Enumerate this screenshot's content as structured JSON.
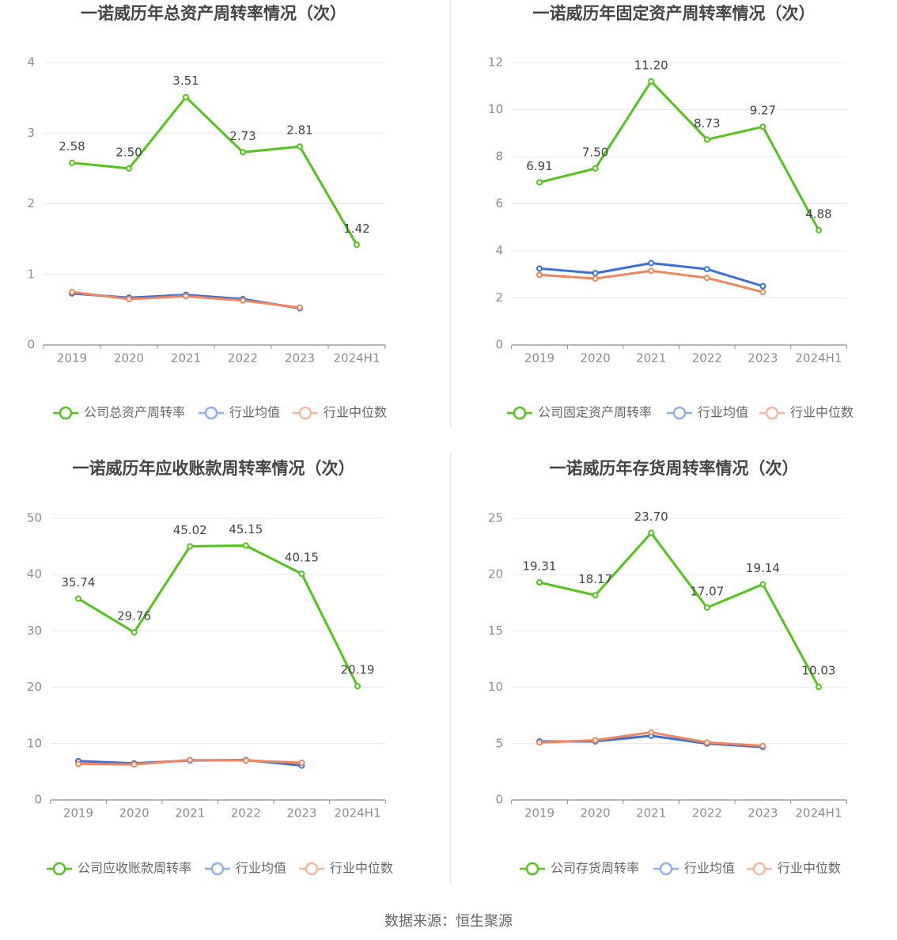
{
  "colors": {
    "company": "#52c41a",
    "industry_avg": "#3a6fd8",
    "industry_median": "#f0865c",
    "legend_avg": "#8fb0ee",
    "legend_median": "#f6b79c",
    "grid": "#e6e8f0",
    "axis": "#8c8c8c",
    "tick_text": "#8c8c8c",
    "label_text": "#444444",
    "title_text": "#444444"
  },
  "source": "数据来源：恒生聚源",
  "chart_data": [
    {
      "type": "line",
      "title": "一诺威历年总资产周转率情况（次）",
      "categories": [
        "2019",
        "2020",
        "2021",
        "2022",
        "2023",
        "2024H1"
      ],
      "ylim": [
        0,
        4
      ],
      "yticks": [
        0,
        1,
        2,
        3,
        4
      ],
      "ytick_labels": [
        "0",
        "1",
        "2",
        "3",
        "4"
      ],
      "grid": true,
      "legend_position": "bottom",
      "series": [
        {
          "name": "公司总资产周转率",
          "role": "company",
          "values": [
            2.58,
            2.5,
            3.51,
            2.73,
            2.81,
            1.42
          ],
          "labels": [
            "2.58",
            "2.50",
            "3.51",
            "2.73",
            "2.81",
            "1.42"
          ]
        },
        {
          "name": "行业均值",
          "role": "industry_avg",
          "values": [
            0.73,
            0.67,
            0.71,
            0.65,
            0.52,
            null
          ]
        },
        {
          "name": "行业中位数",
          "role": "industry_median",
          "values": [
            0.75,
            0.65,
            0.69,
            0.63,
            0.53,
            null
          ]
        }
      ]
    },
    {
      "type": "line",
      "title": "一诺威历年固定资产周转率情况（次）",
      "categories": [
        "2019",
        "2020",
        "2021",
        "2022",
        "2023",
        "2024H1"
      ],
      "ylim": [
        0,
        12
      ],
      "yticks": [
        0,
        2,
        4,
        6,
        8,
        10,
        12
      ],
      "ytick_labels": [
        "0",
        "2",
        "4",
        "6",
        "8",
        "10",
        "12"
      ],
      "grid": true,
      "legend_position": "bottom",
      "series": [
        {
          "name": "公司固定资产周转率",
          "role": "company",
          "values": [
            6.91,
            7.5,
            11.2,
            8.73,
            9.27,
            4.88
          ],
          "labels": [
            "6.91",
            "7.50",
            "11.20",
            "8.73",
            "9.27",
            "4.88"
          ]
        },
        {
          "name": "行业均值",
          "role": "industry_avg",
          "values": [
            3.25,
            3.05,
            3.48,
            3.22,
            2.5,
            null
          ]
        },
        {
          "name": "行业中位数",
          "role": "industry_median",
          "values": [
            2.98,
            2.82,
            3.15,
            2.85,
            2.25,
            null
          ]
        }
      ]
    },
    {
      "type": "line",
      "title": "一诺威历年应收账款周转率情况（次）",
      "categories": [
        "2019",
        "2020",
        "2021",
        "2022",
        "2023",
        "2024H1"
      ],
      "ylim": [
        0,
        50
      ],
      "yticks": [
        0,
        10,
        20,
        30,
        40,
        50
      ],
      "ytick_labels": [
        "0",
        "10",
        "20",
        "30",
        "40",
        "50"
      ],
      "grid": true,
      "legend_position": "bottom",
      "series": [
        {
          "name": "公司应收账款周转率",
          "role": "company",
          "values": [
            35.74,
            29.76,
            45.02,
            45.15,
            40.15,
            20.19
          ],
          "labels": [
            "35.74",
            "29.76",
            "45.02",
            "45.15",
            "40.15",
            "20.19"
          ]
        },
        {
          "name": "行业均值",
          "role": "industry_avg",
          "values": [
            6.9,
            6.5,
            7.0,
            7.1,
            6.1,
            null
          ]
        },
        {
          "name": "行业中位数",
          "role": "industry_median",
          "values": [
            6.4,
            6.3,
            7.1,
            7.0,
            6.6,
            null
          ]
        }
      ]
    },
    {
      "type": "line",
      "title": "一诺威历年存货周转率情况（次）",
      "categories": [
        "2019",
        "2020",
        "2021",
        "2022",
        "2023",
        "2024H1"
      ],
      "ylim": [
        0,
        25
      ],
      "yticks": [
        0,
        5,
        10,
        15,
        20,
        25
      ],
      "ytick_labels": [
        "0",
        "5",
        "10",
        "15",
        "20",
        "25"
      ],
      "grid": true,
      "legend_position": "bottom",
      "series": [
        {
          "name": "公司存货周转率",
          "role": "company",
          "values": [
            19.31,
            18.17,
            23.7,
            17.07,
            19.14,
            10.03
          ],
          "labels": [
            "19.31",
            "18.17",
            "23.70",
            "17.07",
            "19.14",
            "10.03"
          ]
        },
        {
          "name": "行业均值",
          "role": "industry_avg",
          "values": [
            5.2,
            5.2,
            5.7,
            5.0,
            4.7,
            null
          ]
        },
        {
          "name": "行业中位数",
          "role": "industry_median",
          "values": [
            5.1,
            5.3,
            6.0,
            5.1,
            4.8,
            null
          ]
        }
      ]
    }
  ]
}
